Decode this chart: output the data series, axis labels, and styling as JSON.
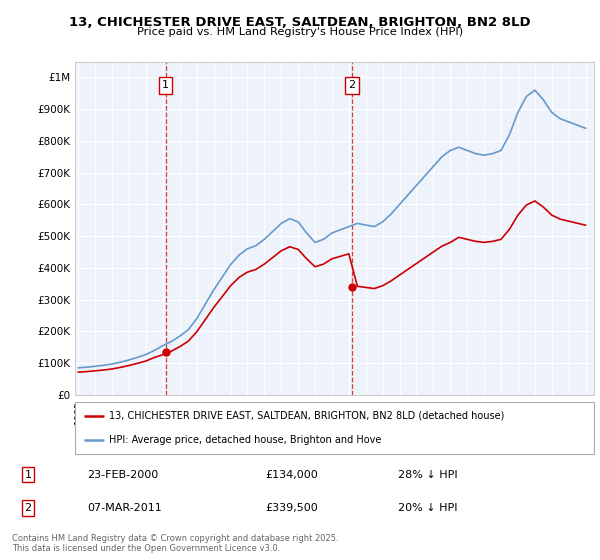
{
  "title1": "13, CHICHESTER DRIVE EAST, SALTDEAN, BRIGHTON, BN2 8LD",
  "title2": "Price paid vs. HM Land Registry's House Price Index (HPI)",
  "bg_color": "#ffffff",
  "plot_bg_color": "#eef2fb",
  "grid_color": "#ffffff",
  "line_color_red": "#cc0000",
  "line_color_blue": "#6699cc",
  "vline_color": "#cc0000",
  "legend_line1": "13, CHICHESTER DRIVE EAST, SALTDEAN, BRIGHTON, BN2 8LD (detached house)",
  "legend_line2": "HPI: Average price, detached house, Brighton and Hove",
  "footer": "Contains HM Land Registry data © Crown copyright and database right 2025.\nThis data is licensed under the Open Government Licence v3.0.",
  "table_row1": [
    "1",
    "23-FEB-2000",
    "£134,000",
    "28% ↓ HPI"
  ],
  "table_row2": [
    "2",
    "07-MAR-2011",
    "£339,500",
    "20% ↓ HPI"
  ],
  "sale1_year": 2000.17,
  "sale1_price": 134000,
  "sale2_year": 2011.18,
  "sale2_price": 339500,
  "yticks": [
    0,
    100000,
    200000,
    300000,
    400000,
    500000,
    600000,
    700000,
    800000,
    900000,
    1000000
  ],
  "ylabels": [
    "£0",
    "£100K",
    "£200K",
    "£300K",
    "£400K",
    "£500K",
    "£600K",
    "£700K",
    "£800K",
    "£900K",
    "£1M"
  ],
  "ylim_max": 1050000,
  "xlim_min": 1994.8,
  "xlim_max": 2025.5
}
